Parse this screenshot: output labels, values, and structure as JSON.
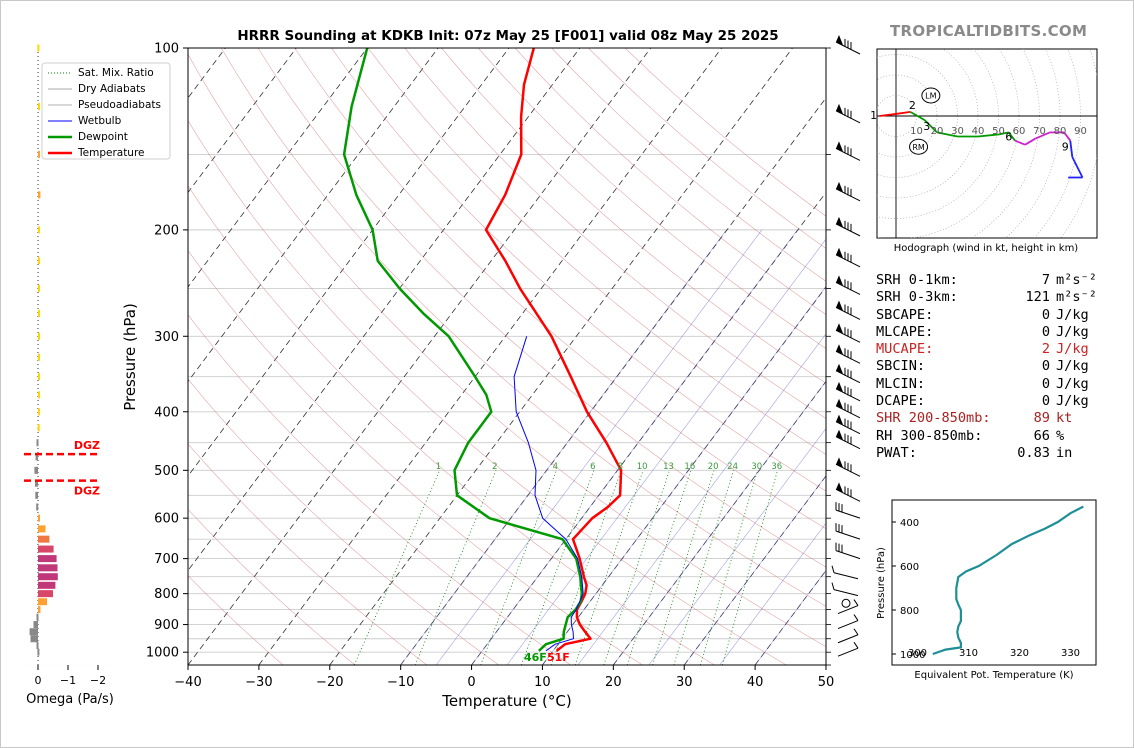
{
  "title": "HRRR Sounding at KDKB Init: 07z May 25 [F001] valid 08z May 25 2025",
  "watermark": "TROPICALTIDBITS.COM",
  "colors": {
    "temperature": "#ff0000",
    "dewpoint": "#009900",
    "wetbulb": "#0000ff",
    "dry_adiabat": "#c0c0c0",
    "moist_adiabat": "#c8c8c8",
    "mixing_ratio": "#008000",
    "hodo_line": "#1e8f96"
  },
  "chart_data": [
    {
      "type": "line",
      "name": "skewt",
      "title": "HRRR Sounding at KDKB Init: 07z May 25 [F001] valid 08z May 25 2025",
      "xlabel": "Temperature (°C)",
      "ylabel": "Pressure (hPa)",
      "xlim": [
        -40,
        50
      ],
      "ylim": [
        1050,
        100
      ],
      "y_scale": "log",
      "x_ticks": [
        -40,
        -30,
        -20,
        -10,
        0,
        10,
        20,
        30,
        40,
        50
      ],
      "x_tick_labels": [
        "−40",
        "−30",
        "−20",
        "−10",
        "0",
        "10",
        "20",
        "30",
        "40",
        "50"
      ],
      "y_ticks": [
        100,
        200,
        300,
        400,
        500,
        600,
        700,
        800,
        900,
        1000
      ],
      "grid": true,
      "legend_position": "top-left",
      "legend": [
        "Sat. Mix. Ratio",
        "Dry Adiabats",
        "Pseudoadiabats",
        "Wetbulb",
        "Dewpoint",
        "Temperature"
      ],
      "mixing_ratio_labels": [
        "1",
        "2",
        "4",
        "6",
        "8",
        "10",
        "13",
        "16",
        "20",
        "24",
        "30",
        "36"
      ],
      "series": [
        {
          "name": "Temperature",
          "p": [
            995,
            970,
            950,
            925,
            900,
            875,
            850,
            825,
            800,
            775,
            750,
            700,
            650,
            600,
            575,
            550,
            500,
            450,
            400,
            350,
            300,
            250,
            225,
            200,
            175,
            150,
            130,
            115,
            100
          ],
          "t": [
            10.5,
            11.0,
            14.0,
            12.5,
            11.0,
            9.8,
            9.0,
            8.8,
            8.5,
            7.8,
            6.5,
            4.0,
            1.0,
            1.5,
            2.5,
            3.0,
            0.5,
            -4.5,
            -10.5,
            -16.5,
            -23.5,
            -33.0,
            -38.0,
            -44.0,
            -45.0,
            -47.0,
            -51.0,
            -54.0,
            -56.5
          ]
        },
        {
          "name": "Dewpoint",
          "p": [
            995,
            970,
            950,
            925,
            900,
            875,
            850,
            825,
            800,
            775,
            750,
            700,
            650,
            600,
            550,
            500,
            450,
            400,
            375,
            350,
            300,
            275,
            250,
            225,
            200,
            175,
            150,
            125,
            100
          ],
          "t": [
            8.0,
            8.3,
            10.2,
            9.5,
            9.0,
            8.5,
            8.8,
            8.7,
            8.0,
            7.0,
            6.0,
            3.5,
            -0.5,
            -13.0,
            -20.0,
            -23.0,
            -24.0,
            -24.0,
            -26.5,
            -30.0,
            -38.0,
            -44.0,
            -50.0,
            -56.0,
            -60.0,
            -66.0,
            -72.0,
            -76.0,
            -80.0
          ]
        },
        {
          "name": "Wetbulb",
          "p": [
            995,
            970,
            950,
            925,
            900,
            875,
            850,
            800,
            750,
            700,
            650,
            600,
            550,
            500,
            450,
            400,
            350,
            300
          ],
          "t": [
            9.0,
            9.6,
            11.6,
            10.8,
            9.8,
            9.0,
            8.9,
            8.2,
            6.2,
            3.7,
            0.0,
            -5.5,
            -9.0,
            -11.5,
            -15.5,
            -20.5,
            -24.5,
            -27.0
          ]
        }
      ],
      "annotations": [
        "46F",
        "51F"
      ],
      "wind_barbs": "right-side profile"
    },
    {
      "type": "line",
      "name": "hodograph",
      "xlabel": "Hodograph (wind in kt, height in km)",
      "ring_labels": [
        "10",
        "20",
        "30",
        "40",
        "50",
        "60",
        "70",
        "80",
        "90"
      ],
      "height_labels": [
        "1",
        "2",
        "3",
        "6",
        "9"
      ],
      "markers": [
        "LM",
        "RM"
      ],
      "u": [
        -8,
        0,
        7,
        14,
        20,
        30,
        40,
        50,
        55,
        58,
        63,
        68,
        75,
        82,
        85,
        86,
        87,
        91,
        84
      ],
      "v": [
        0,
        1,
        2,
        -2,
        -8,
        -10,
        -10,
        -9,
        -8,
        -12,
        -14,
        -11,
        -8,
        -8,
        -12,
        -20,
        -22,
        -30,
        -30
      ]
    },
    {
      "type": "line",
      "name": "theta_e",
      "xlabel": "Equivalent Pot. Temperature (K)",
      "ylabel": "Pressure (hPa)",
      "xlim": [
        295,
        335
      ],
      "ylim": [
        1050,
        300
      ],
      "x_ticks": [
        300,
        310,
        320,
        330
      ],
      "y_ticks": [
        400,
        600,
        800,
        1000
      ],
      "x": [
        303.0,
        305.5,
        308.5,
        308.5,
        308.0,
        307.8,
        308.0,
        308.5,
        308.5,
        308.0,
        307.6,
        307.6,
        308.0,
        309.5,
        312.0,
        315.5,
        318.5,
        322.0,
        325.0,
        327.5,
        330.0,
        332.5
      ],
      "p": [
        1000,
        980,
        970,
        950,
        925,
        900,
        875,
        850,
        800,
        775,
        750,
        700,
        650,
        625,
        600,
        550,
        500,
        460,
        430,
        400,
        360,
        330
      ]
    },
    {
      "type": "bar",
      "name": "omega",
      "xlabel": "Omega (Pa/s)",
      "xlim": [
        0.1,
        -2.0
      ],
      "x_ticks": [
        0,
        -1,
        -2
      ],
      "x_tick_labels": [
        "0",
        "−1",
        "−2"
      ],
      "labels": [
        "DGZ",
        "DGZ"
      ],
      "dgz_p": [
        470,
        520
      ],
      "p": [
        100,
        125,
        150,
        175,
        200,
        225,
        250,
        275,
        300,
        325,
        350,
        375,
        400,
        425,
        450,
        475,
        500,
        525,
        550,
        575,
        600,
        625,
        650,
        675,
        700,
        725,
        750,
        775,
        800,
        825,
        850,
        875,
        900,
        925,
        950,
        975,
        1000
      ],
      "omega": [
        0.02,
        -0.02,
        -0.05,
        -0.08,
        -0.02,
        -0.02,
        -0.02,
        -0.01,
        -0.01,
        -0.01,
        -0.02,
        -0.01,
        -0.01,
        0.01,
        0.05,
        0.08,
        0.12,
        0.1,
        0.09,
        0.06,
        -0.03,
        -0.25,
        -0.38,
        -0.52,
        -0.62,
        -0.65,
        -0.66,
        -0.58,
        -0.5,
        -0.3,
        -0.08,
        0.05,
        0.15,
        0.28,
        0.25,
        0.05,
        0.02
      ]
    }
  ],
  "hodograph_caption": "Hodograph (wind in kt, height in km)",
  "indices": [
    {
      "label": "SRH 0-1km:",
      "value": "7",
      "unit": "m²s⁻²",
      "color": "#000000"
    },
    {
      "label": "SRH 0-3km:",
      "value": "121",
      "unit": "m²s⁻²",
      "color": "#000000"
    },
    {
      "label": "SBCAPE:",
      "value": "0",
      "unit": "J/kg",
      "color": "#000000"
    },
    {
      "label": "MLCAPE:",
      "value": "0",
      "unit": "J/kg",
      "color": "#000000"
    },
    {
      "label": "MUCAPE:",
      "value": "2",
      "unit": "J/kg",
      "color": "#cc2222"
    },
    {
      "label": "SBCIN:",
      "value": "0",
      "unit": "J/kg",
      "color": "#000000"
    },
    {
      "label": "MLCIN:",
      "value": "0",
      "unit": "J/kg",
      "color": "#000000"
    },
    {
      "label": "DCAPE:",
      "value": "0",
      "unit": "J/kg",
      "color": "#000000"
    },
    {
      "label": "SHR 200-850mb:",
      "value": "89",
      "unit": "kt",
      "color": "#aa2222"
    },
    {
      "label": "RH 300-850mb:",
      "value": "66",
      "unit": "%",
      "color": "#000000"
    },
    {
      "label": "PWAT:",
      "value": "0.83",
      "unit": "in",
      "color": "#000000"
    }
  ]
}
